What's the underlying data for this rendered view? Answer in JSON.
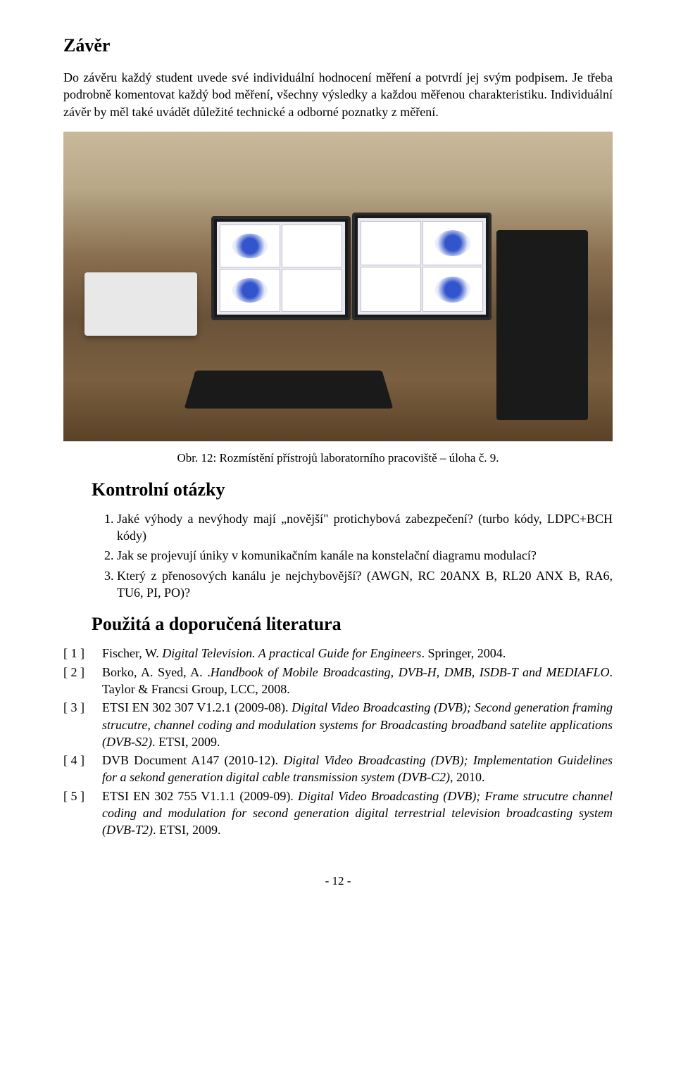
{
  "title": "Závěr",
  "intro_paragraph": "Do závěru každý student uvede své individuální hodnocení měření a potvrdí jej svým podpisem. Je třeba podrobně komentovat každý bod měření, všechny výsledky a každou měřenou charakteristiku. Individuální závěr by měl také uvádět důležité technické a odborné poznatky z měření.",
  "figure_caption": "Obr. 12:  Rozmístění přístrojů laboratorního pracoviště – úloha č. 9.",
  "questions_heading": "Kontrolní otázky",
  "questions": [
    "Jaké výhody a nevýhody mají „novější\" protichybová zabezpečení? (turbo kódy, LDPC+BCH kódy)",
    "Jak se projevují úniky v komunikačním kanále na konstelační diagramu modulací?",
    "Který z přenosových kanálu je nejchybovější? (AWGN, RC 20ANX B, RL20 ANX B, RA6, TU6, PI, PO)?"
  ],
  "refs_heading": "Použitá a doporučená literatura",
  "refs": [
    {
      "label": "[ 1 ]",
      "plain1": "Fischer, W. ",
      "italic": "Digital Television. A practical Guide for Engineers",
      "plain2": ". Springer, 2004."
    },
    {
      "label": "[ 2 ]",
      "plain1": "Borko, A. Syed, A. .",
      "italic": "Handbook of Mobile Broadcasting, DVB-H, DMB, ISDB-T and MEDIAFLO",
      "plain2": ". Taylor & Francsi Group, LCC, 2008."
    },
    {
      "label": "[ 3 ]",
      "plain1": "ETSI EN 302 307 V1.2.1 (2009-08). ",
      "italic": "Digital Video Broadcasting (DVB); Second generation framing strucutre, channel coding and modulation systems for Broadcasting broadband satelite applications (DVB-S2)",
      "plain2": ". ETSI, 2009."
    },
    {
      "label": "[ 4 ]",
      "plain1": "DVB  Document A147 (2010-12). ",
      "italic": "Digital Video Broadcasting (DVB); Implementation Guidelines for a sekond generation digital cable transmission system (DVB-C2)",
      "plain2": ", 2010."
    },
    {
      "label": "[ 5 ]",
      "plain1": "ETSI EN 302 755 V1.1.1 (2009-09). ",
      "italic": "Digital Video Broadcasting (DVB); Frame strucutre channel coding and modulation for second generation digital terrestrial television broadcasting system (DVB-T2)",
      "plain2": ". ETSI, 2009."
    }
  ],
  "page_number": "- 12 -"
}
